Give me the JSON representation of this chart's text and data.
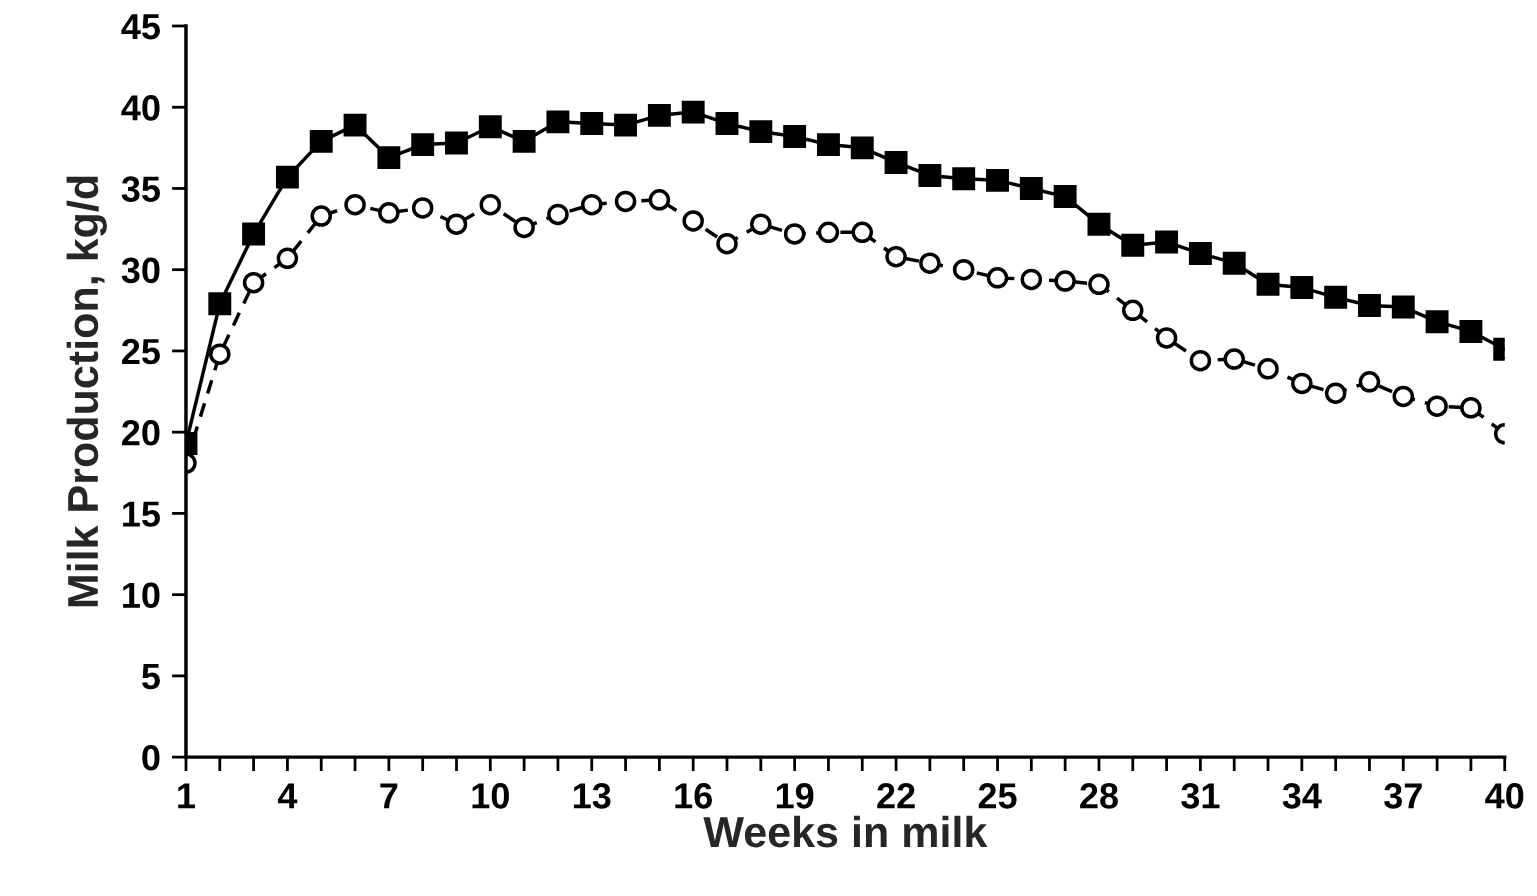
{
  "chart_data": {
    "type": "line",
    "xlabel": "Weeks in milk",
    "ylabel": "Milk Production, kg/d",
    "x": [
      1,
      2,
      3,
      4,
      5,
      6,
      7,
      8,
      9,
      10,
      11,
      12,
      13,
      14,
      15,
      16,
      17,
      18,
      19,
      20,
      21,
      22,
      23,
      24,
      25,
      26,
      27,
      28,
      29,
      30,
      31,
      32,
      33,
      34,
      35,
      36,
      37,
      38,
      39,
      40
    ],
    "series": [
      {
        "color": "#000000",
        "marker": "square",
        "line_style": "solid",
        "values": [
          19.3,
          27.9,
          32.2,
          35.7,
          37.9,
          38.9,
          36.9,
          37.7,
          37.8,
          38.8,
          37.9,
          39.1,
          39.0,
          38.9,
          39.5,
          39.7,
          39.0,
          38.5,
          38.2,
          37.7,
          37.5,
          36.6,
          35.8,
          35.6,
          35.5,
          35.0,
          34.5,
          32.8,
          31.5,
          31.7,
          31.0,
          30.4,
          29.1,
          28.9,
          28.3,
          27.8,
          27.7,
          26.8,
          26.2,
          25.1
        ]
      },
      {
        "color": "#000000",
        "marker": "circle",
        "line_style": "dashed",
        "values": [
          18.1,
          24.8,
          29.2,
          30.7,
          33.3,
          34.0,
          33.5,
          33.8,
          32.8,
          34.0,
          32.6,
          33.4,
          34.0,
          34.2,
          34.3,
          33.0,
          31.6,
          32.8,
          32.2,
          32.3,
          32.3,
          30.8,
          30.4,
          30.0,
          29.5,
          29.4,
          29.3,
          29.1,
          27.5,
          25.8,
          24.4,
          24.5,
          23.9,
          23.0,
          22.4,
          23.1,
          22.2,
          21.6,
          21.5,
          19.9
        ]
      }
    ],
    "xlim": [
      1,
      40
    ],
    "xticks": [
      1,
      {
        "value": 2,
        "label": null
      },
      {
        "value": 3,
        "label": null
      },
      4,
      {
        "value": 5,
        "label": null
      },
      {
        "value": 6,
        "label": null
      },
      7,
      {
        "value": 8,
        "label": null
      },
      {
        "value": 9,
        "label": null
      },
      10,
      {
        "value": 11,
        "label": null
      },
      {
        "value": 12,
        "label": null
      },
      13,
      {
        "value": 14,
        "label": null
      },
      {
        "value": 15,
        "label": null
      },
      16,
      {
        "value": 17,
        "label": null
      },
      {
        "value": 18,
        "label": null
      },
      19,
      {
        "value": 20,
        "label": null
      },
      {
        "value": 21,
        "label": null
      },
      22,
      {
        "value": 23,
        "label": null
      },
      {
        "value": 24,
        "label": null
      },
      25,
      {
        "value": 26,
        "label": null
      },
      {
        "value": 27,
        "label": null
      },
      28,
      {
        "value": 29,
        "label": null
      },
      {
        "value": 30,
        "label": null
      },
      31,
      {
        "value": 32,
        "label": null
      },
      {
        "value": 33,
        "label": null
      },
      34,
      {
        "value": 35,
        "label": null
      },
      {
        "value": 36,
        "label": null
      },
      37,
      {
        "value": 38,
        "label": null
      },
      {
        "value": 39,
        "label": null
      },
      40
    ],
    "ylim": [
      0,
      45
    ],
    "yticks": [
      0,
      5,
      10,
      15,
      20,
      25,
      30,
      35,
      40,
      45
    ],
    "grid": false,
    "legend": false
  }
}
